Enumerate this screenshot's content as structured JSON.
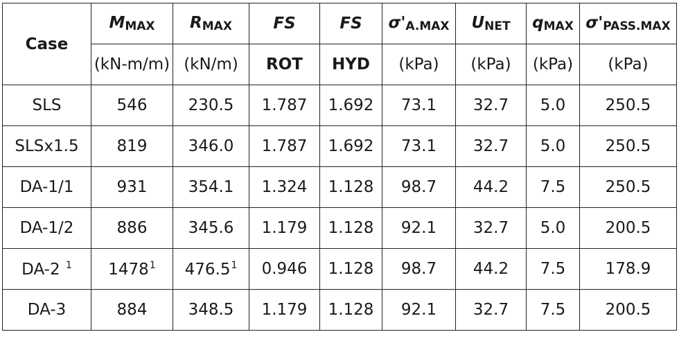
{
  "header": {
    "case": "Case",
    "columns": [
      {
        "sym": "M",
        "sub": "MAX",
        "unit": "(kN-m/m)",
        "unit_bold": false
      },
      {
        "sym": "R",
        "sub": "MAX",
        "unit": "(kN/m)",
        "unit_bold": false
      },
      {
        "sym": "FS",
        "sub": "",
        "unit": "ROT",
        "unit_bold": true
      },
      {
        "sym": "FS",
        "sub": "",
        "unit": "HYD",
        "unit_bold": true
      },
      {
        "sym": "σ'",
        "sub": "A.MAX",
        "unit": "(kPa)",
        "unit_bold": false
      },
      {
        "sym": "U",
        "sub": "NET",
        "unit": "(kPa)",
        "unit_bold": false
      },
      {
        "sym": "q",
        "sub": "MAX",
        "unit": "(kPa)",
        "unit_bold": false
      },
      {
        "sym": "σ'",
        "sub": "PASS.MAX",
        "unit": "(kPa)",
        "unit_bold": false
      }
    ]
  },
  "rows": [
    {
      "case": "SLS",
      "case_fn": "",
      "m": "546",
      "m_fn": "",
      "r": "230.5",
      "r_fn": "",
      "fs_rot": "1.787",
      "fs_hyd": "1.692",
      "sa": "73.1",
      "unet": "32.7",
      "q": "5.0",
      "sp": "250.5"
    },
    {
      "case": "SLSx1.5",
      "case_fn": "",
      "m": "819",
      "m_fn": "",
      "r": "346.0",
      "r_fn": "",
      "fs_rot": "1.787",
      "fs_hyd": "1.692",
      "sa": "73.1",
      "unet": "32.7",
      "q": "5.0",
      "sp": "250.5"
    },
    {
      "case": "DA-1/1",
      "case_fn": "",
      "m": "931",
      "m_fn": "",
      "r": "354.1",
      "r_fn": "",
      "fs_rot": "1.324",
      "fs_hyd": "1.128",
      "sa": "98.7",
      "unet": "44.2",
      "q": "7.5",
      "sp": "250.5"
    },
    {
      "case": "DA-1/2",
      "case_fn": "",
      "m": "886",
      "m_fn": "",
      "r": "345.6",
      "r_fn": "",
      "fs_rot": "1.179",
      "fs_hyd": "1.128",
      "sa": "92.1",
      "unet": "32.7",
      "q": "5.0",
      "sp": "200.5"
    },
    {
      "case": "DA-2",
      "case_fn": "1",
      "m": "1478",
      "m_fn": "1",
      "r": "476.5",
      "r_fn": "1",
      "fs_rot": "0.946",
      "fs_hyd": "1.128",
      "sa": "98.7",
      "unet": "44.2",
      "q": "7.5",
      "sp": "178.9"
    },
    {
      "case": "DA-3",
      "case_fn": "",
      "m": "884",
      "m_fn": "",
      "r": "348.5",
      "r_fn": "",
      "fs_rot": "1.179",
      "fs_hyd": "1.128",
      "sa": "92.1",
      "unet": "32.7",
      "q": "7.5",
      "sp": "200.5"
    }
  ]
}
